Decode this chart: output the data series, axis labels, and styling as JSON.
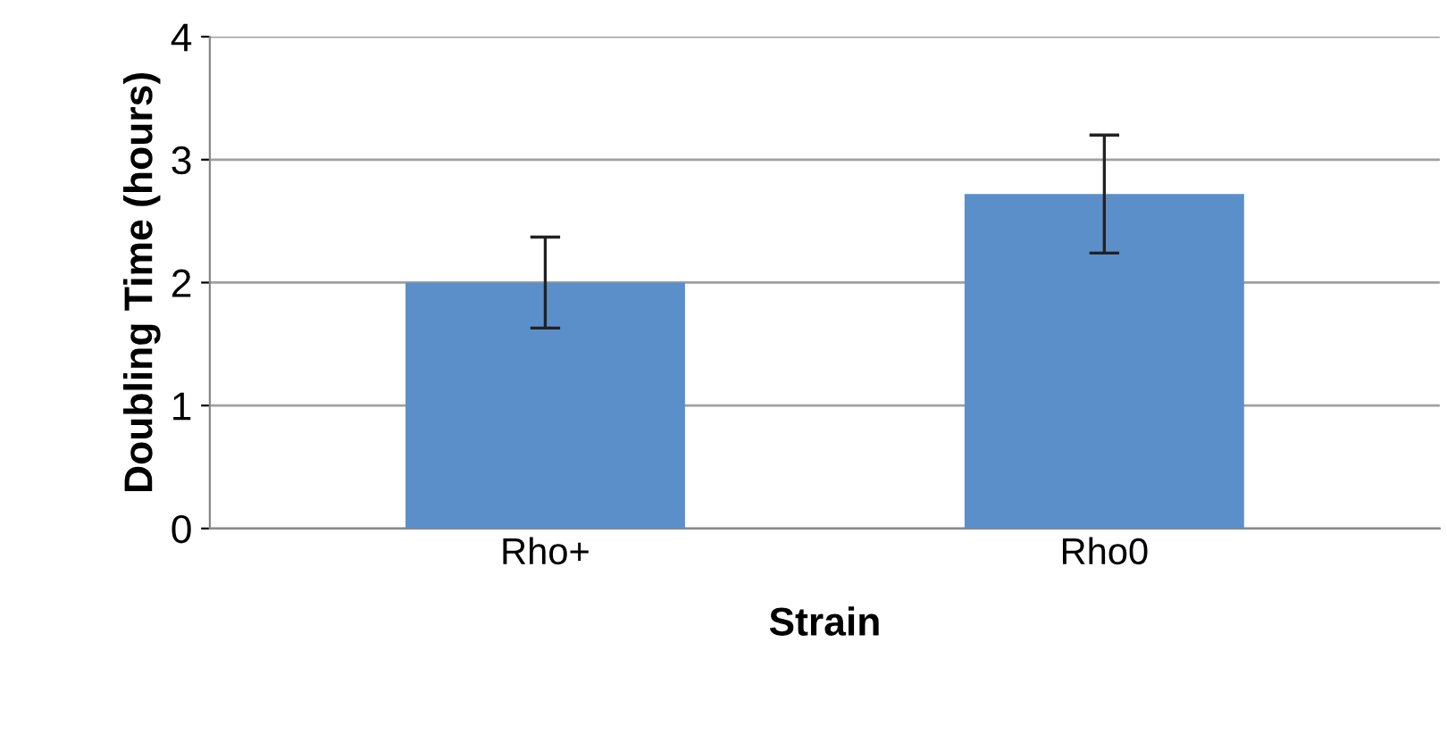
{
  "chart_data": {
    "type": "bar",
    "xlabel": "Strain",
    "ylabel": "Doubling Time (hours)",
    "categories": [
      "Rho+",
      "Rho0"
    ],
    "values": [
      2.0,
      2.72
    ],
    "errors": [
      0.37,
      0.48
    ],
    "color": "#5b8fc9",
    "ylim": [
      0,
      4
    ],
    "yticks": [
      0,
      1,
      2,
      3,
      4
    ],
    "grid": "y"
  }
}
